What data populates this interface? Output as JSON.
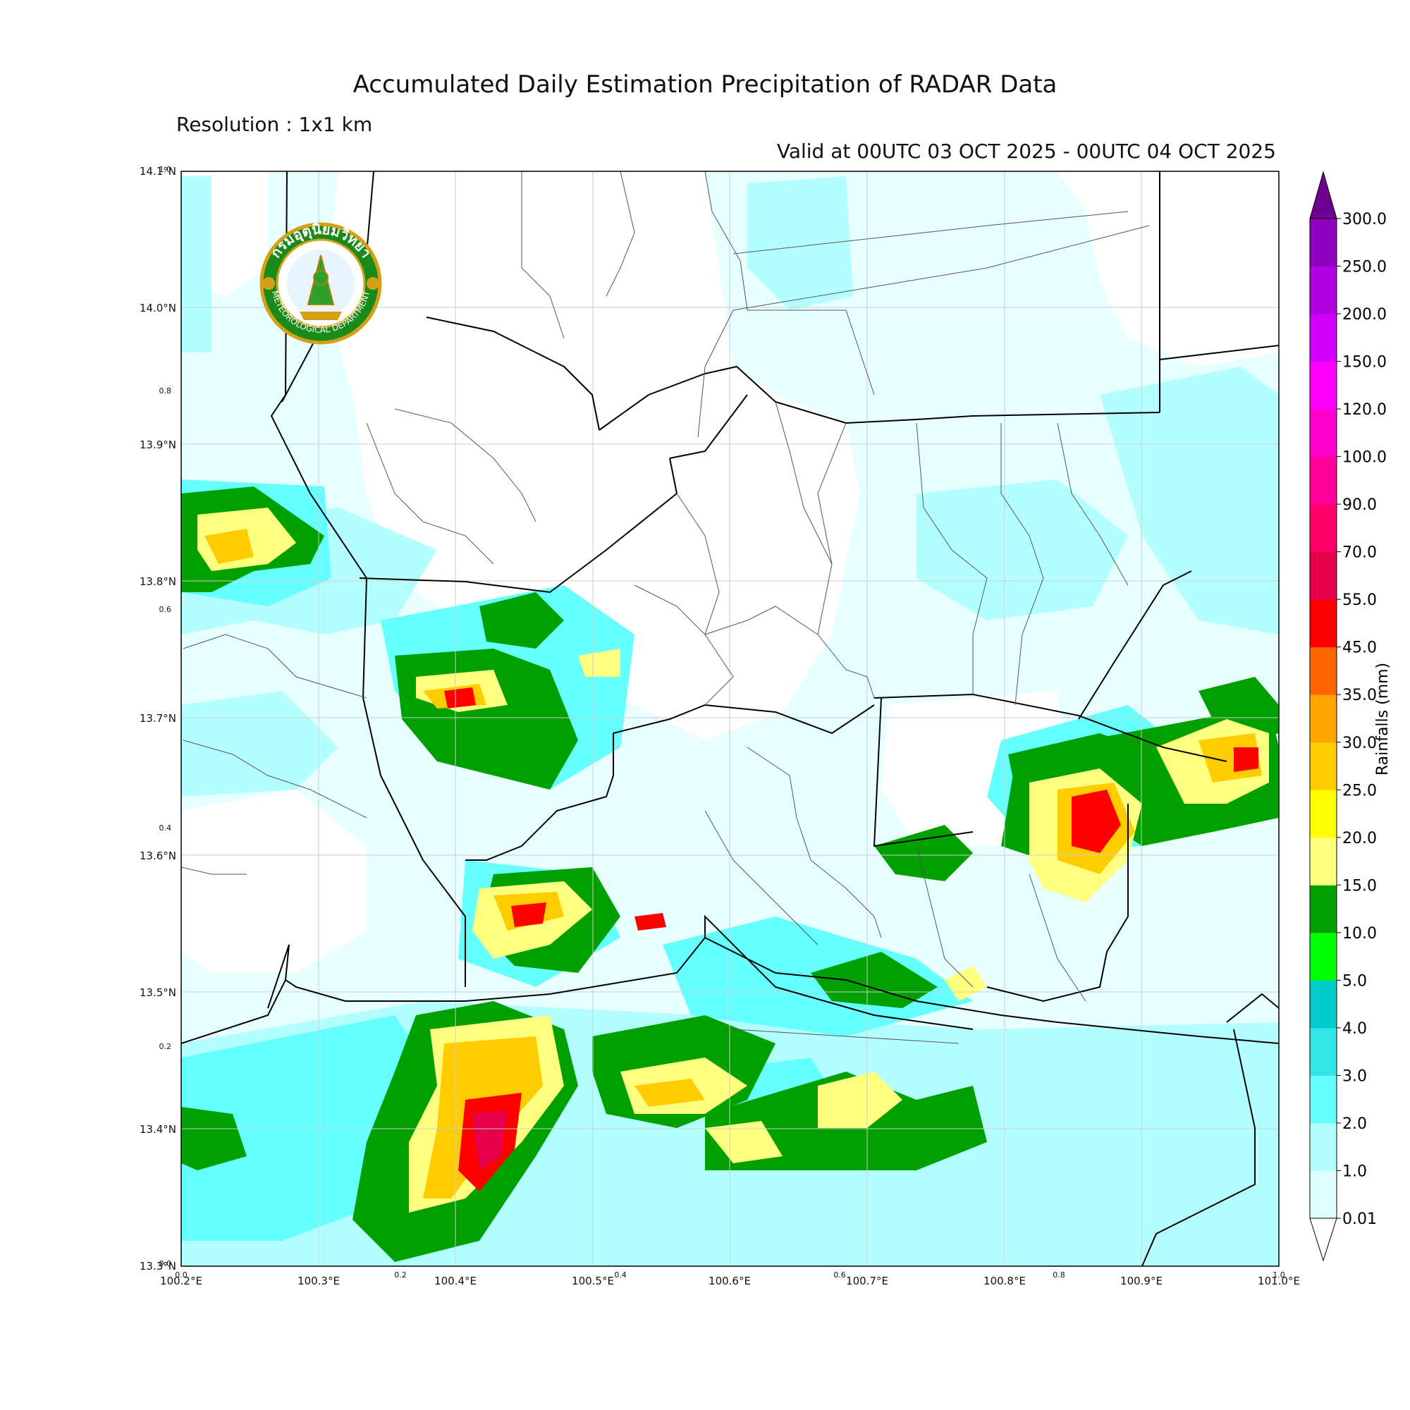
{
  "title": "Accumulated Daily Estimation Precipitation of RADAR Data",
  "resolution": "Resolution : 1x1 km",
  "valid": "Valid at 00UTC 03 OCT 2025 - 00UTC 04 OCT 2025",
  "logo": {
    "text_top": "กรมอุตุนิยมวิทยา",
    "text_bottom": "METEOROLOGICAL DEPARTMENT"
  },
  "lat_labels": [
    "14.1°N",
    "14.0°N",
    "13.9°N",
    "13.8°N",
    "13.7°N",
    "13.6°N",
    "13.5°N",
    "13.4°N",
    "13.3°N"
  ],
  "lon_labels": [
    "100.2°E",
    "100.3°E",
    "100.4°E",
    "100.5°E",
    "100.6°E",
    "100.7°E",
    "100.8°E",
    "100.9°E",
    "101.0°E"
  ],
  "inner_axis_left": [
    "1.0",
    "0.8",
    "0.6",
    "0.4",
    "0.2",
    "0.0"
  ],
  "inner_axis_bottom": [
    "0.0",
    "0.2",
    "0.4",
    "0.6",
    "0.8",
    "1.0"
  ],
  "colorbar": {
    "label": "Rainfalls (mm)",
    "levels": [
      "0.01",
      "1.0",
      "2.0",
      "3.0",
      "4.0",
      "5.0",
      "10.0",
      "15.0",
      "20.0",
      "25.0",
      "30.0",
      "35.0",
      "45.0",
      "55.0",
      "70.0",
      "90.0",
      "100.0",
      "120.0",
      "150.0",
      "200.0",
      "250.0",
      "300.0"
    ],
    "colors": [
      "#e0ffff",
      "#b3ffff",
      "#66ffff",
      "#33e6e6",
      "#00cccc",
      "#00ff00",
      "#00a000",
      "#ffff80",
      "#ffff00",
      "#ffcc00",
      "#ffa500",
      "#ff6600",
      "#ff0000",
      "#e6004c",
      "#ff0066",
      "#ff0099",
      "#ff00cc",
      "#ff00ff",
      "#d000ff",
      "#b000e0",
      "#9000c0",
      "#700090"
    ]
  }
}
